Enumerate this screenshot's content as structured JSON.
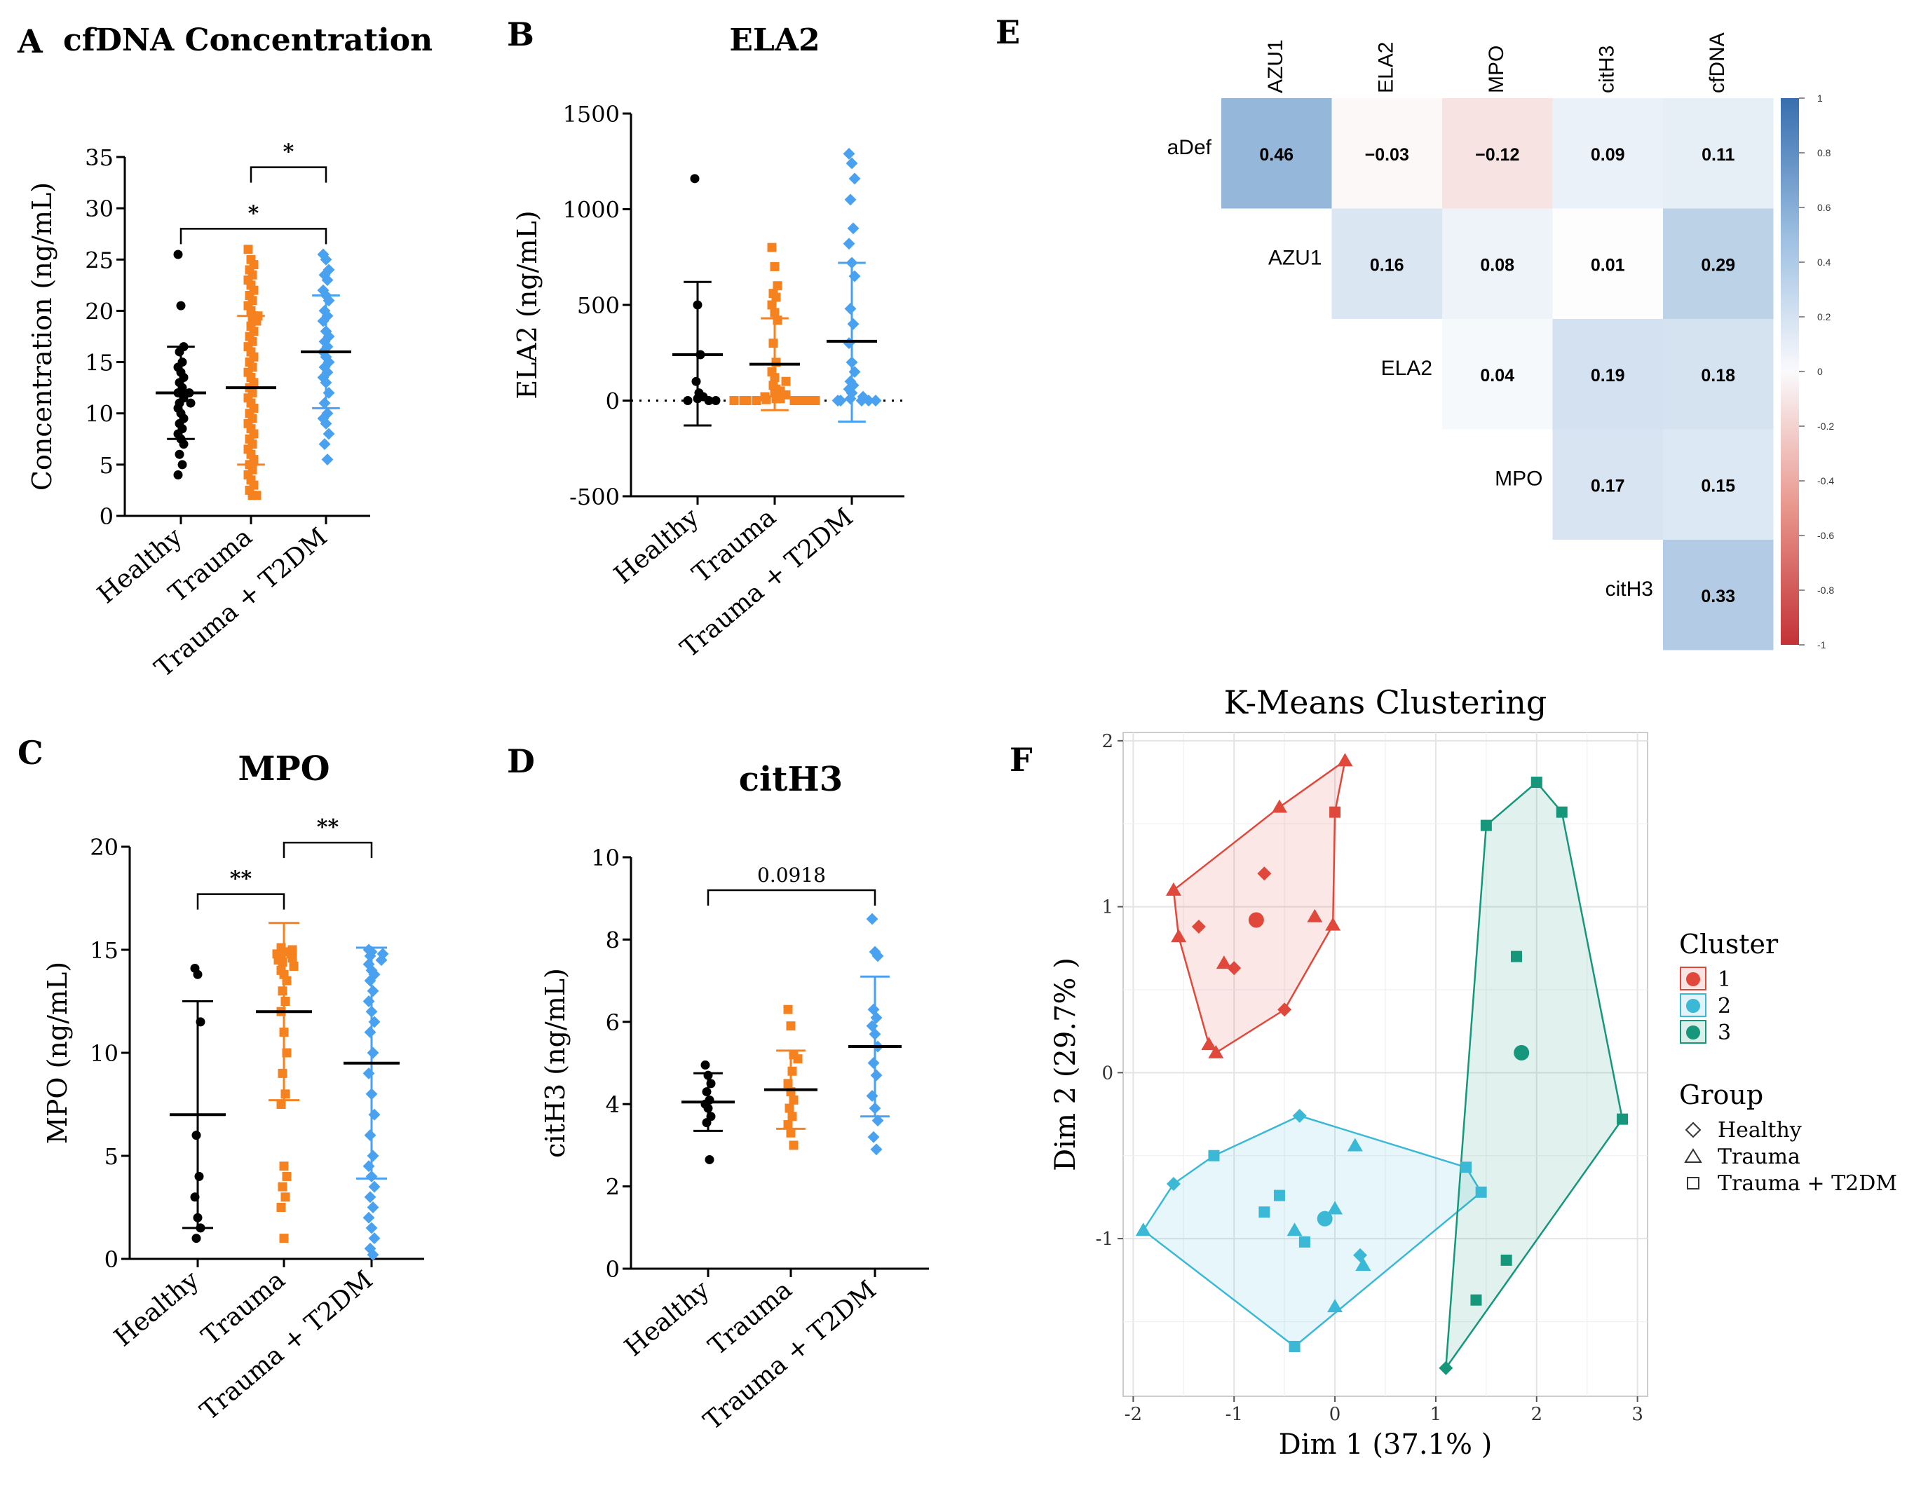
{
  "colors": {
    "healthy": "#000000",
    "trauma": "#f5821f",
    "t2dm": "#4aa1f0",
    "c1": "#e0483b",
    "c2": "#3bb8d6",
    "c3": "#16977b"
  },
  "chart_data": [
    {
      "panel": "A",
      "type": "scatter",
      "title": "cfDNA Concentration",
      "ylabel": "Concentration (ng/mL)",
      "ylim": [
        0,
        35
      ],
      "yticks": [
        "0",
        "5",
        "10",
        "15",
        "20",
        "25",
        "30",
        "35"
      ],
      "categories": [
        "Healthy",
        "Trauma",
        "Trauma + T2DM"
      ],
      "series": [
        {
          "name": "Healthy",
          "mean": 12,
          "sd_low": 7.5,
          "sd_high": 16.5,
          "values": [
            25.5,
            20.5,
            16.5,
            16,
            15,
            14.5,
            14,
            13.5,
            13,
            12.5,
            12,
            12,
            11.5,
            11,
            11,
            10.5,
            10,
            9.5,
            9,
            8.5,
            8,
            7.5,
            7,
            6,
            5,
            4
          ]
        },
        {
          "name": "Trauma",
          "mean": 12.5,
          "sd_low": 5,
          "sd_high": 19.5,
          "values": [
            26,
            25,
            24.5,
            24,
            23.5,
            23,
            22.5,
            22,
            21.5,
            21,
            20.5,
            20,
            19.5,
            19.5,
            19,
            19,
            18.5,
            18,
            17.5,
            17,
            16.5,
            16,
            15.5,
            15,
            14.5,
            14,
            13.5,
            13,
            12.5,
            12,
            11.5,
            11,
            10.5,
            10,
            9.5,
            9,
            8.5,
            8,
            7.5,
            7,
            6.5,
            6,
            5.5,
            5,
            4.5,
            4,
            3.5,
            3,
            2.5,
            2,
            2
          ]
        },
        {
          "name": "Trauma + T2DM",
          "mean": 16,
          "sd_low": 10.5,
          "sd_high": 21.5,
          "values": [
            25.5,
            25,
            24,
            23.5,
            23,
            22,
            21.5,
            21,
            20,
            19.5,
            19,
            18,
            17.5,
            17,
            16.5,
            16,
            15.5,
            15,
            14.5,
            14,
            13.5,
            13,
            12,
            11,
            10,
            9.5,
            9,
            8,
            7,
            5.5
          ]
        }
      ],
      "annotations": [
        {
          "from": "Healthy",
          "to": "Trauma + T2DM",
          "y": 28,
          "label": "*"
        },
        {
          "from": "Trauma",
          "to": "Trauma + T2DM",
          "y": 34,
          "label": "*"
        }
      ]
    },
    {
      "panel": "B",
      "type": "scatter",
      "title": "ELA2",
      "ylabel": "ELA2 (ng/mL)",
      "ylim": [
        -500,
        1500
      ],
      "yticks": [
        "-500",
        "0",
        "500",
        "1000",
        "1500"
      ],
      "categories": [
        "Healthy",
        "Trauma",
        "Trauma + T2DM"
      ],
      "series": [
        {
          "name": "Healthy",
          "mean": 240,
          "sd_low": -130,
          "sd_high": 620,
          "values": [
            1160,
            500,
            240,
            100,
            40,
            20,
            10,
            0,
            0,
            0
          ]
        },
        {
          "name": "Trauma",
          "mean": 190,
          "sd_low": -50,
          "sd_high": 430,
          "values": [
            800,
            700,
            600,
            560,
            540,
            500,
            460,
            420,
            300,
            200,
            150,
            120,
            100,
            80,
            60,
            50,
            40,
            30,
            20,
            10,
            10,
            5,
            0,
            0,
            0,
            0,
            0,
            0,
            0,
            0
          ]
        },
        {
          "name": "Trauma + T2DM",
          "mean": 310,
          "sd_low": -110,
          "sd_high": 720,
          "values": [
            1290,
            1240,
            1160,
            1050,
            900,
            820,
            720,
            650,
            480,
            400,
            300,
            200,
            150,
            100,
            80,
            60,
            40,
            20,
            10,
            0,
            0,
            0,
            0,
            0
          ]
        }
      ],
      "reference_line": 0
    },
    {
      "panel": "C",
      "type": "scatter",
      "title": "MPO",
      "ylabel": "MPO (ng/mL)",
      "ylim": [
        0,
        20
      ],
      "yticks": [
        "0",
        "5",
        "10",
        "15",
        "20"
      ],
      "categories": [
        "Healthy",
        "Trauma",
        "Trauma + T2DM"
      ],
      "series": [
        {
          "name": "Healthy",
          "mean": 7,
          "sd_low": 1.5,
          "sd_high": 12.5,
          "values": [
            14.1,
            13.8,
            11.5,
            6,
            4,
            3,
            2,
            1.5,
            1
          ]
        },
        {
          "name": "Trauma",
          "mean": 12,
          "sd_low": 7.7,
          "sd_high": 16.3,
          "values": [
            15.1,
            15,
            14.9,
            14.8,
            14.8,
            14.7,
            14.6,
            14.5,
            14.4,
            14.2,
            14,
            13.8,
            13.5,
            13,
            12.5,
            12,
            11,
            10,
            9,
            8,
            7.5,
            4.5,
            4,
            3.5,
            3,
            2.5,
            1
          ]
        },
        {
          "name": "Trauma + T2DM",
          "mean": 9.5,
          "sd_low": 3.9,
          "sd_high": 15.1,
          "values": [
            15,
            14.9,
            14.8,
            14.7,
            14.5,
            14.3,
            14,
            13.8,
            13.5,
            13,
            12.5,
            12,
            11.5,
            11,
            10,
            9,
            8,
            7,
            6,
            5,
            4.5,
            4,
            3.5,
            3,
            2.5,
            2,
            1.5,
            1,
            0.5,
            0.2
          ]
        }
      ],
      "annotations": [
        {
          "from": "Healthy",
          "to": "Trauma",
          "y": 17.7,
          "label": "**"
        },
        {
          "from": "Trauma",
          "to": "Trauma + T2DM",
          "y": 20.2,
          "label": "**"
        }
      ]
    },
    {
      "panel": "D",
      "type": "scatter",
      "title": "citH3",
      "ylabel": "citH3 (ng/mL)",
      "ylim": [
        0,
        10
      ],
      "yticks": [
        "0",
        "2",
        "4",
        "6",
        "8",
        "10"
      ],
      "categories": [
        "Healthy",
        "Trauma",
        "Trauma + T2DM"
      ],
      "series": [
        {
          "name": "Healthy",
          "mean": 4.05,
          "sd_low": 3.35,
          "sd_high": 4.75,
          "values": [
            4.95,
            4.7,
            4.5,
            4.3,
            4.1,
            4.0,
            3.9,
            3.7,
            3.55,
            2.65
          ]
        },
        {
          "name": "Trauma",
          "mean": 4.35,
          "sd_low": 3.4,
          "sd_high": 5.3,
          "values": [
            6.3,
            5.9,
            5.2,
            5.1,
            4.8,
            4.5,
            4.3,
            4.1,
            3.9,
            3.7,
            3.5,
            3.3,
            3.0
          ]
        },
        {
          "name": "Trauma + T2DM",
          "mean": 5.4,
          "sd_low": 3.7,
          "sd_high": 7.1,
          "values": [
            8.5,
            7.7,
            7.6,
            6.3,
            6.1,
            5.9,
            5.7,
            5.4,
            5.0,
            4.7,
            4.2,
            3.9,
            3.6,
            3.2,
            2.9
          ]
        }
      ],
      "annotations": [
        {
          "from": "Healthy",
          "to": "Trauma + T2DM",
          "y": 9.2,
          "label": "0.0918"
        }
      ]
    },
    {
      "panel": "E",
      "type": "heatmap",
      "title": "",
      "columns": [
        "AZU1",
        "ELA2",
        "MPO",
        "citH3",
        "cfDNA"
      ],
      "rows": [
        "aDef",
        "AZU1",
        "ELA2",
        "MPO",
        "citH3"
      ],
      "cells": [
        [
          "0.46",
          "−0.03",
          "−0.12",
          "0.09",
          "0.11"
        ],
        [
          null,
          "0.16",
          "0.08",
          "0.01",
          "0.29"
        ],
        [
          null,
          null,
          "0.04",
          "0.19",
          "0.18"
        ],
        [
          null,
          null,
          null,
          "0.17",
          "0.15"
        ],
        [
          null,
          null,
          null,
          null,
          "0.33"
        ]
      ],
      "colorbar_ticks": [
        "1",
        "0.8",
        "0.6",
        "0.4",
        "0.2",
        "0",
        "-0.2",
        "-0.4",
        "-0.6",
        "-0.8",
        "-1"
      ]
    },
    {
      "panel": "F",
      "type": "scatter",
      "title": "K-Means Clustering",
      "xlabel": "Dim 1 (37.1% )",
      "ylabel": "Dim 2 (29.7% )",
      "xlim": [
        -2.1,
        3.1
      ],
      "ylim": [
        -1.95,
        2.05
      ],
      "xticks": [
        "-2",
        "-1",
        "0",
        "1",
        "2",
        "3"
      ],
      "yticks": [
        "-1",
        "0",
        "1",
        "2"
      ],
      "legend_cluster_title": "Cluster",
      "legend_cluster": [
        "1",
        "2",
        "3"
      ],
      "legend_group_title": "Group",
      "legend_group": [
        "Healthy",
        "Trauma",
        "Trauma + T2DM"
      ],
      "clusters": [
        {
          "cluster": "1",
          "points": [
            [
              0.1,
              1.88,
              "t"
            ],
            [
              0.0,
              1.57,
              "s"
            ],
            [
              -0.55,
              1.6,
              "t"
            ],
            [
              -1.6,
              1.1,
              "t"
            ],
            [
              -1.55,
              0.82,
              "t"
            ],
            [
              -1.35,
              0.88,
              "h"
            ],
            [
              -0.7,
              1.2,
              "h"
            ],
            [
              -1.1,
              0.66,
              "t"
            ],
            [
              -1.0,
              0.63,
              "h"
            ],
            [
              -0.2,
              0.94,
              "t"
            ],
            [
              -0.02,
              0.89,
              "t"
            ],
            [
              -0.5,
              0.38,
              "h"
            ],
            [
              -1.25,
              0.17,
              "t"
            ],
            [
              -1.18,
              0.12,
              "t"
            ]
          ],
          "centroid": [
            -0.78,
            0.92
          ],
          "hull": [
            [
              0.1,
              1.88
            ],
            [
              -0.55,
              1.6
            ],
            [
              -1.6,
              1.1
            ],
            [
              -1.55,
              0.82
            ],
            [
              -1.25,
              0.17
            ],
            [
              -1.18,
              0.12
            ],
            [
              -0.5,
              0.38
            ],
            [
              -0.02,
              0.89
            ],
            [
              0.0,
              1.57
            ]
          ]
        },
        {
          "cluster": "2",
          "points": [
            [
              -1.9,
              -0.95,
              "t"
            ],
            [
              -1.6,
              -0.67,
              "h"
            ],
            [
              -1.2,
              -0.5,
              "s"
            ],
            [
              -0.35,
              -0.26,
              "h"
            ],
            [
              0.2,
              -0.44,
              "t"
            ],
            [
              1.3,
              -0.57,
              "s"
            ],
            [
              1.45,
              -0.72,
              "s"
            ],
            [
              -0.55,
              -0.74,
              "s"
            ],
            [
              -0.7,
              -0.84,
              "s"
            ],
            [
              0.0,
              -0.82,
              "t"
            ],
            [
              -0.4,
              -0.95,
              "t"
            ],
            [
              -0.3,
              -1.02,
              "s"
            ],
            [
              0.25,
              -1.1,
              "h"
            ],
            [
              0.28,
              -1.16,
              "t"
            ],
            [
              0.0,
              -1.41,
              "t"
            ],
            [
              -0.4,
              -1.65,
              "s"
            ]
          ],
          "centroid": [
            -0.1,
            -0.88
          ],
          "hull": [
            [
              -1.9,
              -0.95
            ],
            [
              -1.6,
              -0.67
            ],
            [
              -1.2,
              -0.5
            ],
            [
              -0.35,
              -0.26
            ],
            [
              1.3,
              -0.57
            ],
            [
              1.45,
              -0.72
            ],
            [
              -0.4,
              -1.65
            ]
          ]
        },
        {
          "cluster": "3",
          "points": [
            [
              2.0,
              1.75,
              "s"
            ],
            [
              2.25,
              1.57,
              "s"
            ],
            [
              1.5,
              1.49,
              "s"
            ],
            [
              1.8,
              0.7,
              "s"
            ],
            [
              2.85,
              -0.28,
              "s"
            ],
            [
              1.7,
              -1.13,
              "s"
            ],
            [
              1.4,
              -1.37,
              "s"
            ],
            [
              1.1,
              -1.78,
              "h"
            ]
          ],
          "centroid": [
            1.85,
            0.12
          ],
          "hull": [
            [
              2.0,
              1.75
            ],
            [
              2.25,
              1.57
            ],
            [
              2.85,
              -0.28
            ],
            [
              1.1,
              -1.78
            ],
            [
              1.5,
              1.49
            ]
          ]
        }
      ]
    }
  ]
}
